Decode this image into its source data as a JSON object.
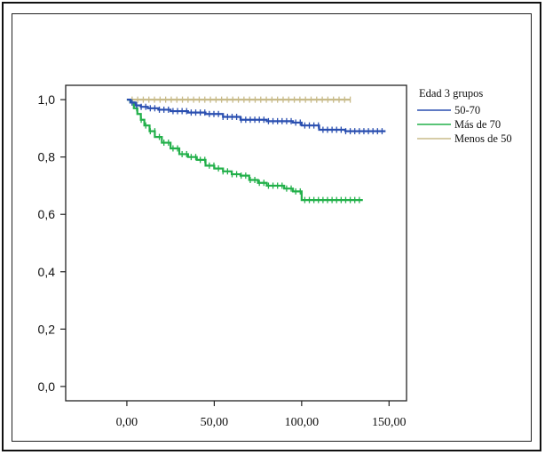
{
  "chart_data": {
    "type": "line",
    "title": "",
    "xlabel": "",
    "ylabel": "",
    "xlim": [
      -35,
      160
    ],
    "ylim": [
      -0.05,
      1.05
    ],
    "x_ticks": [
      0,
      50,
      100,
      150
    ],
    "x_tick_labels": [
      "0,00",
      "50,00",
      "100,00",
      "150,00"
    ],
    "y_ticks": [
      0,
      0.2,
      0.4,
      0.6,
      0.8,
      1.0
    ],
    "y_tick_labels": [
      "0,0",
      "0,2",
      "0,4",
      "0,6",
      "0,8",
      "1,0"
    ],
    "grid": false,
    "legend_title": "Edad 3 grupos",
    "legend_position": "right",
    "series": [
      {
        "name": "50-70",
        "color": "#2a4fb0",
        "x": [
          0,
          2,
          5,
          8,
          12,
          18,
          25,
          35,
          45,
          55,
          65,
          80,
          95,
          100,
          110,
          125,
          148
        ],
        "y": [
          1.0,
          0.99,
          0.98,
          0.975,
          0.97,
          0.965,
          0.96,
          0.955,
          0.95,
          0.94,
          0.93,
          0.925,
          0.92,
          0.91,
          0.895,
          0.89,
          0.89
        ]
      },
      {
        "name": "Más de 70",
        "color": "#22b04a",
        "x": [
          0,
          2,
          4,
          6,
          8,
          10,
          13,
          16,
          20,
          25,
          30,
          35,
          40,
          45,
          50,
          55,
          60,
          65,
          70,
          75,
          80,
          85,
          90,
          95,
          100,
          105,
          120,
          135
        ],
        "y": [
          1.0,
          0.99,
          0.97,
          0.95,
          0.93,
          0.91,
          0.89,
          0.87,
          0.85,
          0.83,
          0.81,
          0.8,
          0.79,
          0.77,
          0.76,
          0.75,
          0.74,
          0.735,
          0.72,
          0.71,
          0.7,
          0.7,
          0.69,
          0.68,
          0.65,
          0.65,
          0.65,
          0.65
        ]
      },
      {
        "name": "Menos de 50",
        "color": "#c8bb8a",
        "x": [
          0,
          128
        ],
        "y": [
          1.0,
          1.0
        ]
      }
    ]
  }
}
